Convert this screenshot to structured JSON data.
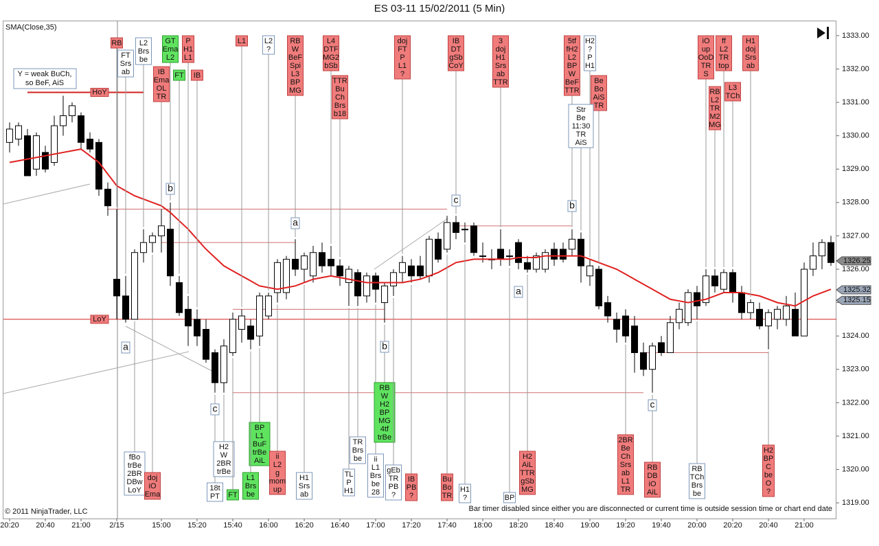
{
  "chart_data": {
    "type": "candlestick",
    "title": "ES 03-11  15/02/2011 (5 Min)",
    "indicator_label": "SMA(Close,35)",
    "copyright": "© 2011 NinjaTrader, LLC",
    "status_text": "Bar timer disabled since either you are disconnected or current time is outside session time or chart end date",
    "note": [
      "Y = weak BuCh,",
      "so BeF, AiS"
    ],
    "categories": [
      "20:20",
      null,
      null,
      null,
      "20:40",
      null,
      null,
      null,
      "21:00",
      null,
      null,
      null,
      "2/15",
      null,
      null,
      null,
      null,
      "15:00",
      null,
      null,
      null,
      "15:20",
      null,
      null,
      null,
      "15:40",
      null,
      null,
      null,
      "16:00",
      null,
      null,
      null,
      "16:20",
      null,
      null,
      null,
      "16:40",
      null,
      null,
      null,
      "17:00",
      null,
      null,
      null,
      "17:20",
      null,
      null,
      null,
      "17:40",
      null,
      null,
      null,
      "18:00",
      null,
      null,
      null,
      "18:20",
      null,
      null,
      null,
      "18:40",
      null,
      null,
      null,
      "19:00",
      null,
      null,
      null,
      "19:20",
      null,
      null,
      null,
      "19:40",
      null,
      null,
      null,
      "20:00",
      null,
      null,
      null,
      "20:20",
      null,
      null,
      null,
      "20:40",
      null,
      null,
      null,
      "21:00",
      null,
      null,
      null
    ],
    "open": [
      1329.8,
      1329.9,
      1330.0,
      1329.0,
      1329.5,
      1329.2,
      1330.3,
      1330.6,
      1330.6,
      1329.9,
      1329.8,
      1328.4,
      1325.7,
      1325.2,
      1324.5,
      1326.5,
      1326.8,
      1327.0,
      1327.2,
      1325.6,
      1324.8,
      1324.5,
      1324.2,
      1323.5,
      1322.6,
      1323.5,
      1324.2,
      1324.3,
      1324.0,
      1324.6,
      1325.3,
      1325.3,
      1326.3,
      1326.0,
      1325.8,
      1326.5,
      1326.3,
      1326.1,
      1325.6,
      1325.9,
      1325.2,
      1325.8,
      1325.0,
      1325.5,
      1325.9,
      1326.1,
      1326.1,
      1325.8,
      1326.9,
      1326.6,
      1327.4,
      1327.2,
      1327.3,
      1326.4,
      1326.3,
      1326.6,
      1326.4,
      1326.8,
      1326.2,
      1326.0,
      1326.0,
      1326.6,
      1326.6,
      1326.6,
      1326.9,
      1325.8,
      1326.0,
      1325.0,
      1324.5,
      1324.6,
      1324.3,
      1323.5,
      1323.0,
      1323.8,
      1323.5,
      1324.4,
      1324.4,
      1325.3,
      1325.0,
      1325.8,
      1325.4,
      1325.9,
      1325.3,
      1324.7,
      1324.8,
      1324.3,
      1324.5,
      1324.5,
      1324.8,
      1324.0,
      1326.0,
      1326.4,
      1326.8
    ],
    "high": [
      1330.4,
      1330.4,
      1330.2,
      1330.1,
      1329.7,
      1330.6,
      1331.2,
      1331.0,
      1330.7,
      1330.1,
      1329.9,
      1328.6,
      1327.8,
      1325.8,
      1326.6,
      1327.2,
      1327.1,
      1327.8,
      1328.0,
      1325.8,
      1325.2,
      1324.8,
      1324.5,
      1323.6,
      1323.9,
      1324.7,
      1324.8,
      1324.5,
      1325.3,
      1325.3,
      1326.3,
      1326.4,
      1326.9,
      1326.5,
      1326.7,
      1326.8,
      1326.7,
      1326.3,
      1326.1,
      1326.0,
      1325.9,
      1325.9,
      1325.6,
      1326.0,
      1326.4,
      1326.3,
      1326.4,
      1327.0,
      1327.1,
      1327.6,
      1327.6,
      1327.4,
      1327.4,
      1326.8,
      1326.6,
      1327.2,
      1326.6,
      1326.9,
      1326.4,
      1326.5,
      1326.6,
      1326.8,
      1326.8,
      1327.2,
      1327.1,
      1326.3,
      1326.1,
      1325.2,
      1324.7,
      1324.8,
      1324.6,
      1323.8,
      1323.8,
      1324.0,
      1324.6,
      1325.0,
      1325.4,
      1325.5,
      1326.0,
      1326.0,
      1326.0,
      1326.0,
      1325.5,
      1325.1,
      1325.0,
      1324.8,
      1324.9,
      1325.2,
      1325.3,
      1326.2,
      1326.8,
      1326.9,
      1327.0
    ],
    "low": [
      1329.5,
      1329.7,
      1328.8,
      1328.8,
      1328.9,
      1329.1,
      1330.0,
      1330.4,
      1329.6,
      1329.5,
      1328.2,
      1327.6,
      1324.5,
      1324.4,
      1324.5,
      1326.2,
      1326.5,
      1326.5,
      1325.5,
      1324.6,
      1323.7,
      1323.7,
      1323.2,
      1322.3,
      1322.3,
      1323.4,
      1323.8,
      1323.6,
      1323.7,
      1324.5,
      1325.0,
      1325.1,
      1325.8,
      1325.6,
      1325.6,
      1325.9,
      1325.8,
      1325.5,
      1324.9,
      1324.9,
      1325.0,
      1325.0,
      1324.4,
      1325.2,
      1325.6,
      1325.6,
      1325.7,
      1325.6,
      1326.2,
      1326.5,
      1326.9,
      1326.8,
      1326.4,
      1326.2,
      1326.0,
      1326.1,
      1326.1,
      1326.0,
      1325.9,
      1325.9,
      1325.9,
      1326.1,
      1326.2,
      1326.4,
      1325.6,
      1325.5,
      1324.8,
      1324.4,
      1323.8,
      1323.8,
      1322.9,
      1322.8,
      1322.3,
      1323.4,
      1323.5,
      1324.2,
      1324.3,
      1324.5,
      1324.9,
      1325.3,
      1325.3,
      1325.0,
      1324.5,
      1324.5,
      1324.2,
      1323.6,
      1324.2,
      1324.3,
      1324.0,
      1324.0,
      1325.8,
      1326.0,
      1326.1
    ],
    "close": [
      1330.2,
      1330.3,
      1328.8,
      1330.0,
      1329.0,
      1330.3,
      1330.6,
      1330.9,
      1329.8,
      1329.6,
      1328.4,
      1327.9,
      1325.2,
      1324.5,
      1326.5,
      1326.8,
      1327.0,
      1327.3,
      1325.8,
      1324.7,
      1324.3,
      1324.0,
      1323.3,
      1322.6,
      1323.7,
      1324.5,
      1324.6,
      1323.9,
      1325.2,
      1325.2,
      1326.2,
      1326.3,
      1326.0,
      1326.4,
      1326.5,
      1326.1,
      1326.1,
      1325.8,
      1326.0,
      1325.2,
      1325.8,
      1325.4,
      1325.5,
      1325.9,
      1326.2,
      1325.8,
      1325.8,
      1326.9,
      1326.3,
      1327.4,
      1327.1,
      1327.2,
      1326.5,
      1326.4,
      1326.3,
      1326.3,
      1326.4,
      1326.2,
      1326.0,
      1326.4,
      1326.5,
      1326.3,
      1326.3,
      1326.9,
      1326.1,
      1326.1,
      1324.9,
      1324.6,
      1324.2,
      1324.0,
      1323.5,
      1323.0,
      1323.7,
      1323.5,
      1324.4,
      1324.8,
      1325.3,
      1324.9,
      1325.8,
      1325.5,
      1325.9,
      1325.3,
      1324.7,
      1325.0,
      1324.3,
      1324.7,
      1324.8,
      1324.9,
      1324.0,
      1326.0,
      1326.4,
      1326.8,
      1326.2
    ],
    "series": [
      {
        "name": "SMA(Close,35)",
        "color": "#e02020",
        "values": [
          1329.2,
          1329.25,
          1329.3,
          1329.35,
          1329.4,
          1329.45,
          1329.5,
          1329.55,
          1329.6,
          1329.4,
          1329.2,
          1328.85,
          1328.5,
          1328.35,
          1328.2,
          1328.1,
          1328.0,
          1327.9,
          1327.7,
          1327.45,
          1327.2,
          1326.9,
          1326.6,
          1326.35,
          1326.1,
          1325.95,
          1325.8,
          1325.65,
          1325.5,
          1325.45,
          1325.4,
          1325.45,
          1325.5,
          1325.6,
          1325.7,
          1325.75,
          1325.8,
          1325.75,
          1325.7,
          1325.65,
          1325.6,
          1325.6,
          1325.6,
          1325.6,
          1325.6,
          1325.65,
          1325.7,
          1325.8,
          1325.9,
          1326.05,
          1326.2,
          1326.25,
          1326.3,
          1326.3,
          1326.3,
          1326.3,
          1326.3,
          1326.35,
          1326.35,
          1326.35,
          1326.4,
          1326.4,
          1326.4,
          1326.4,
          1326.4,
          1326.3,
          1326.2,
          1326.1,
          1326.0,
          1325.85,
          1325.7,
          1325.55,
          1325.4,
          1325.25,
          1325.1,
          1325.05,
          1325.0,
          1325.05,
          1325.1,
          1325.2,
          1325.3,
          1325.3,
          1325.3,
          1325.25,
          1325.2,
          1325.1,
          1325.0,
          1324.95,
          1324.9,
          1325.05,
          1325.2,
          1325.3,
          1325.4
        ]
      }
    ],
    "up_color": "#ffffff",
    "down_color": "#000000",
    "ylim": [
      1318.53,
      1333.45
    ],
    "yticks": [
      {
        "value": 1319,
        "label": "1319.00"
      },
      {
        "value": 1320,
        "label": "1320.00"
      },
      {
        "value": 1321,
        "label": "1321.00"
      },
      {
        "value": 1322,
        "label": "1322.00"
      },
      {
        "value": 1323,
        "label": "1323.00"
      },
      {
        "value": 1324,
        "label": "1324.00"
      },
      {
        "value": 1325,
        "label": "1325.00"
      },
      {
        "value": 1326,
        "label": "1326.00"
      },
      {
        "value": 1327,
        "label": "1327.00"
      },
      {
        "value": 1328,
        "label": "1328.00"
      },
      {
        "value": 1329,
        "label": "1329.00"
      },
      {
        "value": 1330,
        "label": "1330.00"
      },
      {
        "value": 1331,
        "label": "1331.00"
      },
      {
        "value": 1332,
        "label": "1332.00"
      },
      {
        "value": 1333,
        "label": "1333.00"
      }
    ],
    "price_markers": [
      {
        "value": 1326.25,
        "color": "#8a8a8a"
      },
      {
        "value": 1325.32,
        "color": "#9aa6b8"
      },
      {
        "value": 1325.15,
        "color": "#9aa6b8"
      }
    ],
    "key_levels": [
      {
        "value": 1331.3,
        "label": "HoY"
      },
      {
        "value": 1324.5,
        "label": "LoY"
      }
    ],
    "levels": [
      1327.8,
      1326.8,
      1327.3,
      1324.8,
      1322.3,
      1323.5
    ],
    "swing_labels": [
      "b",
      "a",
      "c",
      "b",
      "a",
      "c",
      "b",
      "a",
      "c"
    ],
    "annotations": [
      {
        "lines": [
          "RB"
        ],
        "color": "red"
      },
      {
        "lines": [
          "FT",
          "Srs",
          "ab"
        ],
        "color": "white"
      },
      {
        "lines": [
          "L2",
          "Brs",
          "be"
        ],
        "color": "white"
      },
      {
        "lines": [
          "GT",
          "Ema",
          "L2"
        ],
        "color": "green"
      },
      {
        "lines": [
          "FT"
        ],
        "color": "green"
      },
      {
        "lines": [
          "P",
          "H1",
          "L1"
        ],
        "color": "red"
      },
      {
        "lines": [
          "IB"
        ],
        "color": "red"
      },
      {
        "lines": [
          "IB",
          "Ema",
          "OL",
          "TR"
        ],
        "color": "red"
      },
      {
        "lines": [
          "L1"
        ],
        "color": "red"
      },
      {
        "lines": [
          "L2",
          "?"
        ],
        "color": "white"
      },
      {
        "lines": [
          "RB",
          "W",
          "BeF",
          "Spi",
          "L3",
          "BP",
          "MG"
        ],
        "color": "red"
      },
      {
        "lines": [
          "L4",
          "DTF",
          "MG2",
          "bSb"
        ],
        "color": "red"
      },
      {
        "lines": [
          "TTR",
          "Bu",
          "Ch",
          "Brs",
          "b18"
        ],
        "color": "red"
      },
      {
        "lines": [
          "doj",
          "FT",
          "P",
          "L1",
          "?"
        ],
        "color": "red"
      },
      {
        "lines": [
          "IB",
          "DT",
          "gSb",
          "CoY"
        ],
        "color": "red"
      },
      {
        "lines": [
          "3",
          "doj",
          "H1",
          "Srs",
          "ab",
          "TTR"
        ],
        "color": "red"
      },
      {
        "lines": [
          "5tf",
          "fH2",
          "L2",
          "BP",
          "W",
          "BeF",
          "TTR"
        ],
        "color": "red"
      },
      {
        "lines": [
          "H2",
          "?",
          "P",
          "H1"
        ],
        "color": "white"
      },
      {
        "lines": [
          "Be",
          "Bo",
          "AiS",
          "TR"
        ],
        "color": "red"
      },
      {
        "lines": [
          "Str",
          "Be",
          "11:30",
          "TR",
          "AiS"
        ],
        "color": "white"
      },
      {
        "lines": [
          "iO",
          "up",
          "OoD",
          "TR",
          "S"
        ],
        "color": "red"
      },
      {
        "lines": [
          "ff",
          "L2",
          "TR",
          "top"
        ],
        "color": "red"
      },
      {
        "lines": [
          "RB",
          "L2",
          "TR",
          "M2",
          "MG"
        ],
        "color": "red"
      },
      {
        "lines": [
          "L3",
          "TCh"
        ],
        "color": "red"
      },
      {
        "lines": [
          "H1",
          "doj",
          "Srs",
          "ab"
        ],
        "color": "red"
      },
      {
        "lines": [
          "fBo",
          "trBe",
          "2BR",
          "DBw",
          "LoY"
        ],
        "color": "white"
      },
      {
        "lines": [
          "doj",
          "iO",
          "Ema"
        ],
        "color": "red"
      },
      {
        "lines": [
          "18t",
          "PT"
        ],
        "color": "white"
      },
      {
        "lines": [
          "H2",
          "W",
          "2BR",
          "trBe"
        ],
        "color": "white"
      },
      {
        "lines": [
          "FT"
        ],
        "color": "green"
      },
      {
        "lines": [
          "BP",
          "L1",
          "BuF",
          "trBe",
          "AiL"
        ],
        "color": "green"
      },
      {
        "lines": [
          "L1",
          "Brs",
          "be"
        ],
        "color": "green"
      },
      {
        "lines": [
          "ii",
          "L2",
          "g",
          "mom",
          "up"
        ],
        "color": "red"
      },
      {
        "lines": [
          "H1",
          "Srs",
          "ab"
        ],
        "color": "white"
      },
      {
        "lines": [
          "TR",
          "Brs",
          "be"
        ],
        "color": "white"
      },
      {
        "lines": [
          "TL",
          "P",
          "H1"
        ],
        "color": "white"
      },
      {
        "lines": [
          "ii",
          "L1",
          "Brs",
          "be",
          "28"
        ],
        "color": "white"
      },
      {
        "lines": [
          "RB",
          "W",
          "H2",
          "BP",
          "MG",
          "4tf",
          "trBe"
        ],
        "color": "green"
      },
      {
        "lines": [
          "gEb",
          "TR",
          "PB",
          "?"
        ],
        "color": "white"
      },
      {
        "lines": [
          "IB",
          "PB",
          "?"
        ],
        "color": "red"
      },
      {
        "lines": [
          "Bu",
          "Bo",
          "TR"
        ],
        "color": "red"
      },
      {
        "lines": [
          "H1",
          "?"
        ],
        "color": "white"
      },
      {
        "lines": [
          "BP"
        ],
        "color": "white"
      },
      {
        "lines": [
          "H2",
          "AiL",
          "TTR",
          "gSb",
          "MG"
        ],
        "color": "red"
      },
      {
        "lines": [
          "2BR",
          "Be",
          "Ch",
          "Srs",
          "ab",
          "L1",
          "TR"
        ],
        "color": "red"
      },
      {
        "lines": [
          "RB",
          "DB",
          "iO",
          "AiL"
        ],
        "color": "red"
      },
      {
        "lines": [
          "RB",
          "TCh",
          "Brs",
          "be"
        ],
        "color": "white"
      },
      {
        "lines": [
          "H2",
          "BP",
          "C",
          "be",
          "O",
          "?"
        ],
        "color": "red"
      }
    ]
  }
}
